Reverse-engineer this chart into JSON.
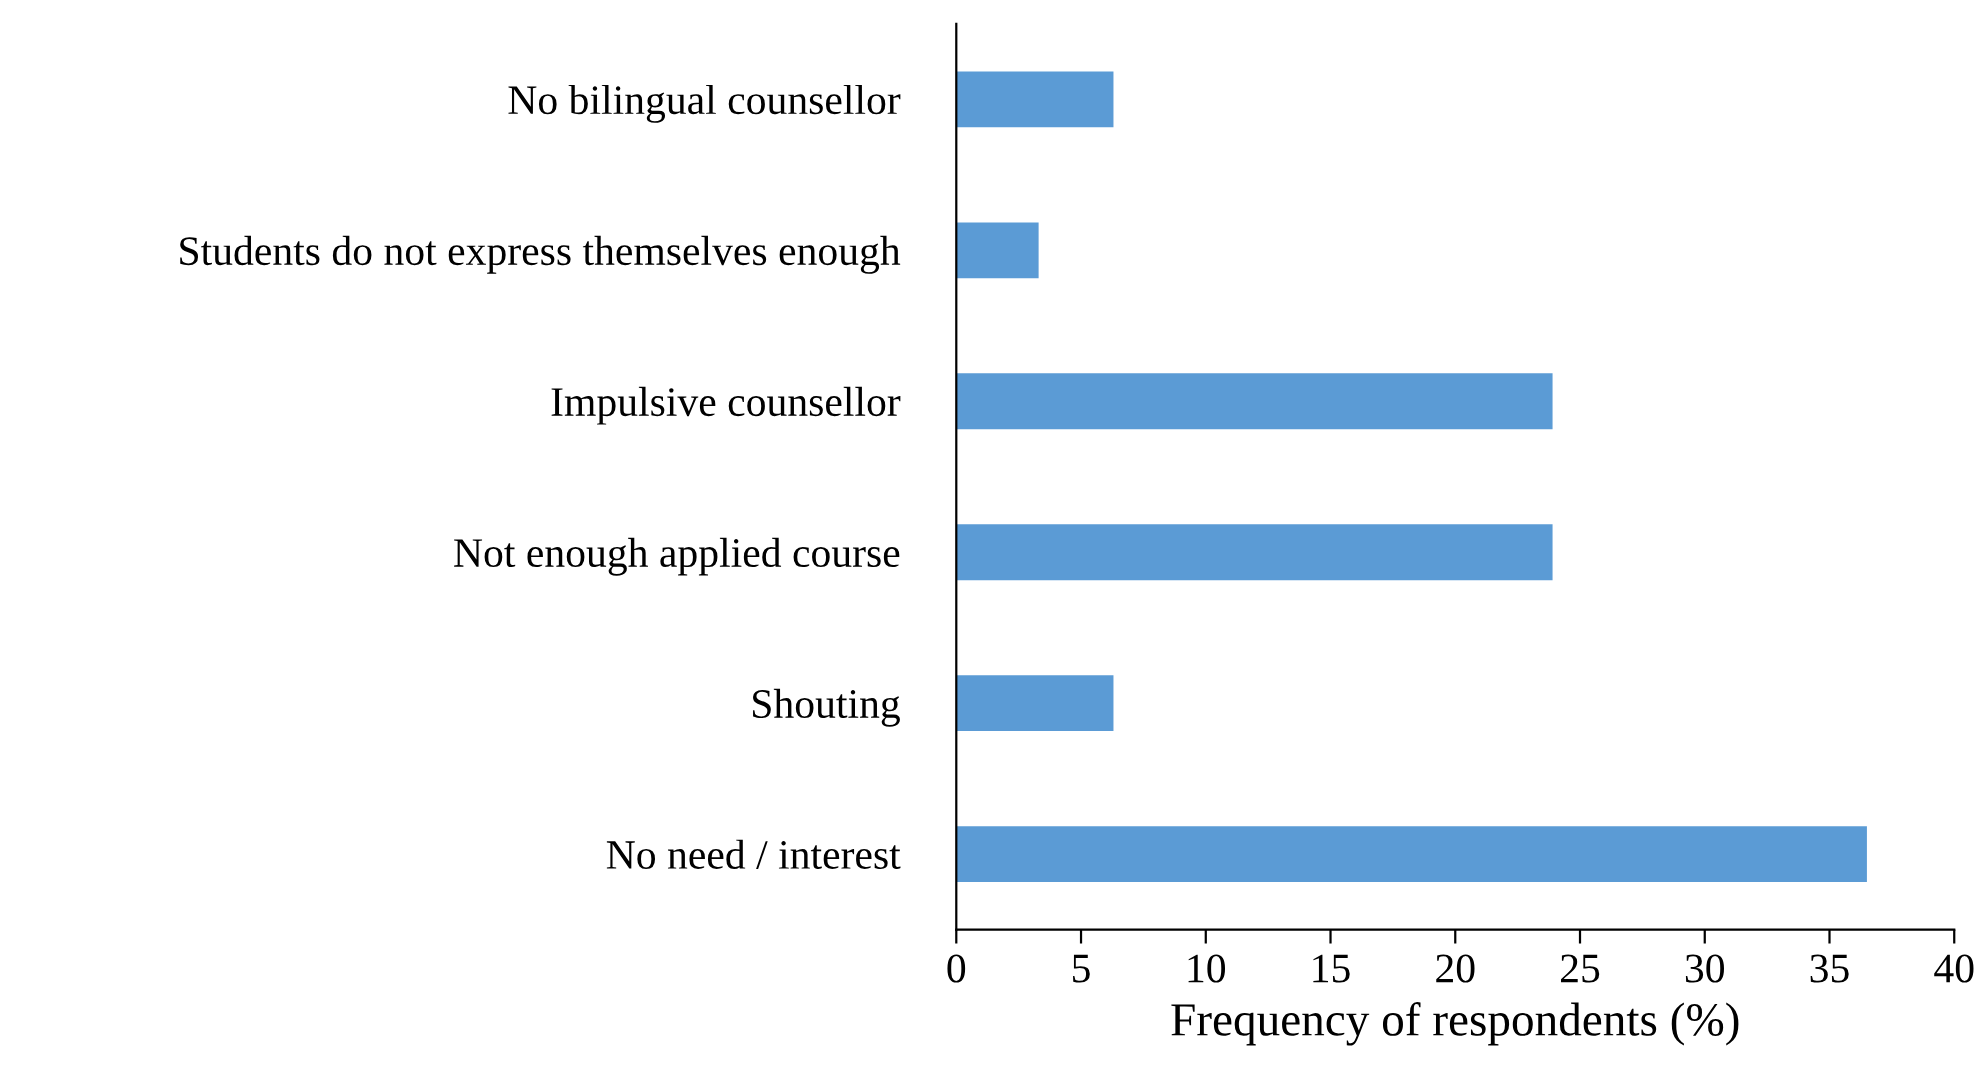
{
  "chart_data": {
    "type": "bar",
    "orientation": "horizontal",
    "xlabel": "Frequency of respondents (%)",
    "categories": [
      "No bilingual counsellor",
      "Students do not express themselves enough",
      "Impulsive counsellor",
      "Not enough applied course",
      "Shouting",
      "No need / interest"
    ],
    "values": [
      6.3,
      3.3,
      23.9,
      23.9,
      6.3,
      36.5
    ],
    "color": "#5b9bd5",
    "xlim": [
      0,
      40
    ],
    "xticks": [
      0,
      5,
      10,
      15,
      20,
      25,
      30,
      35,
      40
    ],
    "grid": false,
    "legend": false
  }
}
